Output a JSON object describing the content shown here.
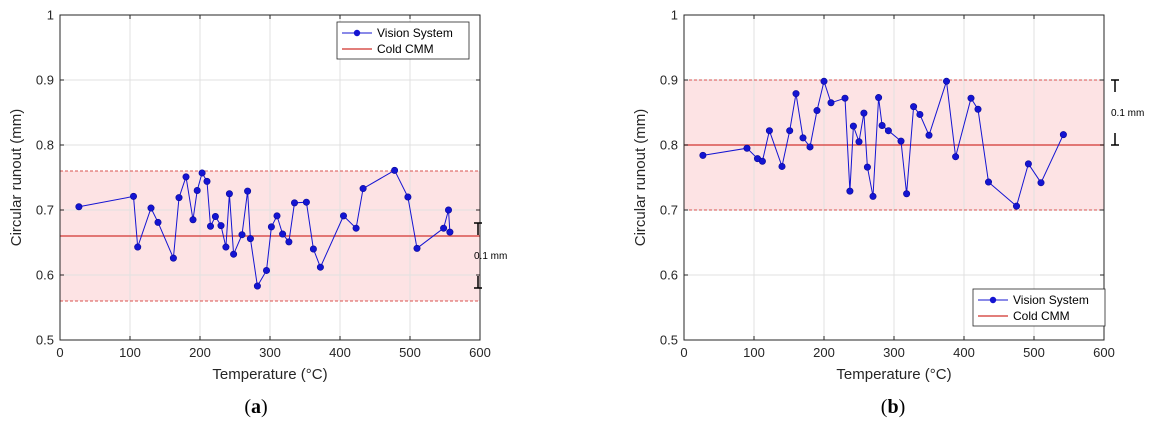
{
  "colors": {
    "vision": "#1414d2",
    "cmm": "#d9534f",
    "band_fill": "#fde3e4",
    "band_edge": "#d9534f",
    "grid": "#e1e1e1",
    "axis": "#262626"
  },
  "chart_data": [
    {
      "type": "line",
      "panel_label": "a",
      "xlabel": "Temperature (°C)",
      "ylabel": "Circular runout (mm)",
      "xlim": [
        0,
        600
      ],
      "ylim": [
        0.5,
        1.0
      ],
      "xticks": [
        0,
        100,
        200,
        300,
        400,
        500,
        600
      ],
      "yticks": [
        0.5,
        0.6,
        0.7,
        0.8,
        0.9,
        1.0
      ],
      "xtick_labels": [
        "0",
        "100",
        "200",
        "300",
        "400",
        "500",
        "600"
      ],
      "ytick_labels": [
        "0.5",
        "0.6",
        "0.7",
        "0.8",
        "0.9",
        "1"
      ],
      "grid": true,
      "legend_position": "top-right",
      "reference_band": {
        "center": 0.66,
        "lower": 0.56,
        "upper": 0.76
      },
      "scale_annotation": {
        "text": "0.1 mm",
        "from": 0.68,
        "to": 0.58
      },
      "series": [
        {
          "name": "Vision System",
          "x": [
            27,
            105,
            111,
            130,
            140,
            162,
            170,
            180,
            190,
            196,
            203,
            210,
            215,
            222,
            230,
            237,
            242,
            248,
            260,
            268,
            272,
            282,
            295,
            302,
            310,
            318,
            327,
            335,
            352,
            362,
            372,
            405,
            423,
            433,
            478,
            497,
            510,
            548,
            555,
            557
          ],
          "y": [
            0.705,
            0.721,
            0.643,
            0.703,
            0.681,
            0.626,
            0.719,
            0.751,
            0.685,
            0.73,
            0.757,
            0.744,
            0.675,
            0.69,
            0.676,
            0.643,
            0.725,
            0.632,
            0.662,
            0.729,
            0.656,
            0.583,
            0.607,
            0.674,
            0.691,
            0.663,
            0.651,
            0.711,
            0.712,
            0.64,
            0.612,
            0.691,
            0.672,
            0.733,
            0.761,
            0.72,
            0.641,
            0.672,
            0.7,
            0.666
          ]
        },
        {
          "name": "Cold CMM",
          "value": 0.66
        }
      ]
    },
    {
      "type": "line",
      "panel_label": "b",
      "xlabel": "Temperature (°C)",
      "ylabel": "Circular runout (mm)",
      "xlim": [
        0,
        600
      ],
      "ylim": [
        0.5,
        1.0
      ],
      "xticks": [
        0,
        100,
        200,
        300,
        400,
        500,
        600
      ],
      "yticks": [
        0.5,
        0.6,
        0.7,
        0.8,
        0.9,
        1.0
      ],
      "xtick_labels": [
        "0",
        "100",
        "200",
        "300",
        "400",
        "500",
        "600"
      ],
      "ytick_labels": [
        "0.5",
        "0.6",
        "0.7",
        "0.8",
        "0.9",
        "1"
      ],
      "grid": true,
      "legend_position": "bottom-right",
      "reference_band": {
        "center": 0.8,
        "lower": 0.7,
        "upper": 0.9
      },
      "scale_annotation": {
        "text": "0.1 mm",
        "from": 0.9,
        "to": 0.8
      },
      "series": [
        {
          "name": "Vision System",
          "x": [
            27,
            90,
            105,
            112,
            122,
            140,
            151,
            160,
            170,
            180,
            190,
            200,
            210,
            230,
            237,
            242,
            250,
            257,
            262,
            270,
            278,
            283,
            292,
            310,
            318,
            328,
            337,
            350,
            375,
            388,
            410,
            420,
            435,
            475,
            492,
            510,
            542
          ],
          "y": [
            0.784,
            0.795,
            0.779,
            0.775,
            0.822,
            0.767,
            0.822,
            0.879,
            0.811,
            0.797,
            0.853,
            0.898,
            0.865,
            0.872,
            0.729,
            0.829,
            0.805,
            0.849,
            0.766,
            0.721,
            0.873,
            0.83,
            0.822,
            0.806,
            0.725,
            0.859,
            0.847,
            0.815,
            0.898,
            0.782,
            0.872,
            0.855,
            0.743,
            0.706,
            0.771,
            0.742,
            0.816
          ]
        },
        {
          "name": "Cold CMM",
          "value": 0.8
        }
      ]
    }
  ]
}
